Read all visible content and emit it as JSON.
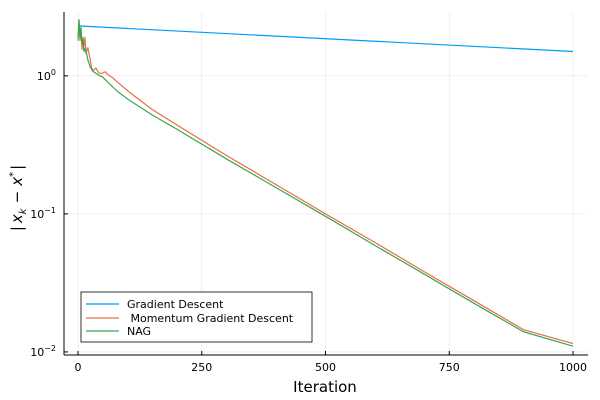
{
  "chart_data": {
    "type": "line",
    "xlabel": "Iteration",
    "ylabel_parts": {
      "open": "|",
      "x": "x",
      "sub": "k",
      "minus": "−",
      "x2": "x",
      "star": "*",
      "close": "|"
    },
    "y_scale": "log",
    "xlim": [
      0,
      1000
    ],
    "ylim": [
      0.0095,
      2.9
    ],
    "x_ticks": [
      0,
      250,
      500,
      750,
      1000
    ],
    "y_ticks": [
      {
        "value": 1,
        "base": "10",
        "exp": "0"
      },
      {
        "value": 0.1,
        "base": "10",
        "exp": "−1"
      },
      {
        "value": 0.01,
        "base": "10",
        "exp": "−2"
      }
    ],
    "grid": true,
    "legend_position": "bottom-left",
    "series": [
      {
        "name": "Gradient Descent",
        "color": "#009af9",
        "points": [
          [
            0,
            2.3
          ],
          [
            1000,
            1.5
          ]
        ]
      },
      {
        "name": " Momentum Gradient Descent",
        "color": "#e26f46",
        "points": [
          [
            0,
            1.9
          ],
          [
            2,
            2.5
          ],
          [
            4,
            1.8
          ],
          [
            6,
            2.2
          ],
          [
            8,
            1.55
          ],
          [
            10,
            1.9
          ],
          [
            12,
            1.65
          ],
          [
            14,
            1.9
          ],
          [
            16,
            1.45
          ],
          [
            20,
            1.6
          ],
          [
            24,
            1.35
          ],
          [
            28,
            1.12
          ],
          [
            32,
            1.1
          ],
          [
            36,
            1.14
          ],
          [
            42,
            1.05
          ],
          [
            48,
            1.04
          ],
          [
            55,
            1.07
          ],
          [
            60,
            1.02
          ],
          [
            70,
            0.97
          ],
          [
            80,
            0.9
          ],
          [
            100,
            0.78
          ],
          [
            150,
            0.57
          ],
          [
            200,
            0.44
          ],
          [
            300,
            0.265
          ],
          [
            400,
            0.163
          ],
          [
            500,
            0.1
          ],
          [
            600,
            0.062
          ],
          [
            700,
            0.038
          ],
          [
            800,
            0.0235
          ],
          [
            900,
            0.0145
          ],
          [
            1000,
            0.0115
          ]
        ]
      },
      {
        "name": "NAG",
        "color": "#3da44d",
        "points": [
          [
            0,
            1.8
          ],
          [
            2,
            2.55
          ],
          [
            4,
            1.9
          ],
          [
            6,
            2.25
          ],
          [
            8,
            1.7
          ],
          [
            10,
            1.85
          ],
          [
            12,
            1.5
          ],
          [
            15,
            1.6
          ],
          [
            20,
            1.3
          ],
          [
            25,
            1.15
          ],
          [
            30,
            1.08
          ],
          [
            40,
            1.02
          ],
          [
            50,
            0.98
          ],
          [
            60,
            0.9
          ],
          [
            80,
            0.77
          ],
          [
            100,
            0.68
          ],
          [
            150,
            0.52
          ],
          [
            200,
            0.41
          ],
          [
            300,
            0.25
          ],
          [
            400,
            0.155
          ],
          [
            500,
            0.096
          ],
          [
            600,
            0.059
          ],
          [
            700,
            0.0365
          ],
          [
            800,
            0.0225
          ],
          [
            900,
            0.014
          ],
          [
            1000,
            0.011
          ]
        ]
      }
    ]
  }
}
